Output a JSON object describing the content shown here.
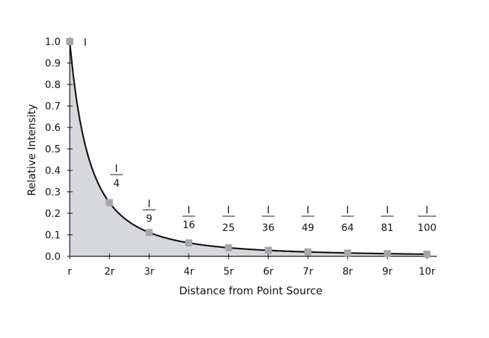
{
  "chart_data": {
    "type": "line",
    "xlabel": "Distance from Point Source",
    "ylabel": "Relative Intensity",
    "x": [
      1,
      2,
      3,
      4,
      5,
      6,
      7,
      8,
      9,
      10
    ],
    "x_tick_labels": [
      "r",
      "2r",
      "3r",
      "4r",
      "5r",
      "6r",
      "7r",
      "8r",
      "9r",
      "10r"
    ],
    "xlim": [
      1,
      10
    ],
    "ylim": [
      0,
      1.0
    ],
    "y_ticks": [
      0.0,
      0.1,
      0.2,
      0.3,
      0.4,
      0.5,
      0.6,
      0.7,
      0.8,
      0.9,
      1.0
    ],
    "y_tick_labels": [
      "0.0",
      "0.1",
      "0.2",
      "0.3",
      "0.4",
      "0.5",
      "0.6",
      "0.7",
      "0.8",
      "0.9",
      "1.0"
    ],
    "series": [
      {
        "values": [
          1.0,
          0.25,
          0.111,
          0.0625,
          0.04,
          0.0278,
          0.0204,
          0.0156,
          0.0123,
          0.01
        ]
      }
    ],
    "area_fill": true,
    "grid": false,
    "annotations": [
      {
        "x": 1,
        "numerator": "I"
      },
      {
        "x": 2,
        "numerator": "I",
        "denominator": "4"
      },
      {
        "x": 3,
        "numerator": "I",
        "denominator": "9"
      },
      {
        "x": 4,
        "numerator": "I",
        "denominator": "16"
      },
      {
        "x": 5,
        "numerator": "I",
        "denominator": "25"
      },
      {
        "x": 6,
        "numerator": "I",
        "denominator": "36"
      },
      {
        "x": 7,
        "numerator": "I",
        "denominator": "49"
      },
      {
        "x": 8,
        "numerator": "I",
        "denominator": "64"
      },
      {
        "x": 9,
        "numerator": "I",
        "denominator": "81"
      },
      {
        "x": 10,
        "numerator": "I",
        "denominator": "100"
      }
    ],
    "colors": {
      "line": "#111111",
      "fill": "#d6d8dc",
      "marker": "#a3a6ab",
      "axis": "#111111"
    }
  }
}
